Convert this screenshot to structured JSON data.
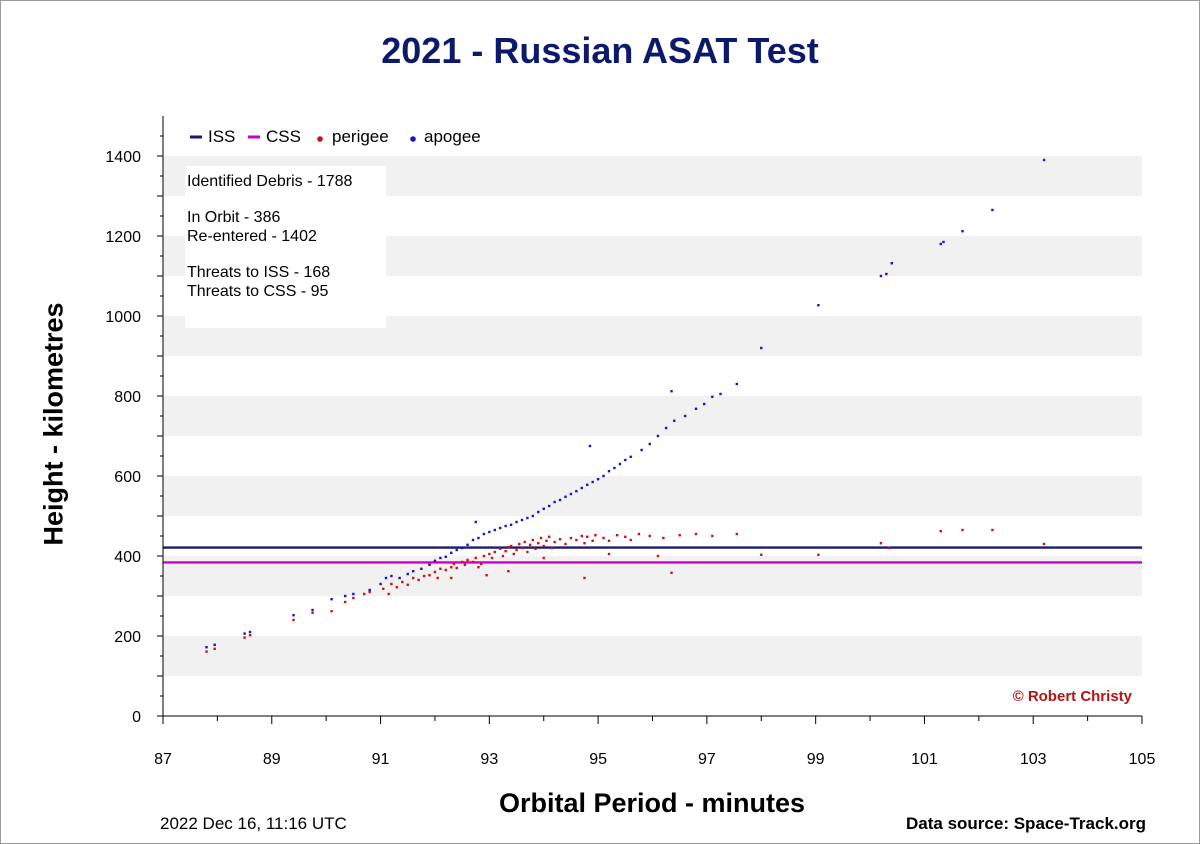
{
  "page": {
    "title": "2021 - Russian ASAT Test",
    "timestamp": "2022 Dec 16, 11:16 UTC",
    "source": "Data source: Space-Track.org"
  },
  "chart_data": {
    "type": "scatter",
    "title": "2021 - Russian ASAT Test",
    "xlabel": "Orbital Period - minutes",
    "ylabel": "Height - kilometres",
    "xlim": [
      87,
      105
    ],
    "ylim": [
      0,
      1500
    ],
    "x_ticks": [
      87,
      89,
      91,
      93,
      95,
      97,
      99,
      101,
      103,
      105
    ],
    "y_ticks": [
      0,
      200,
      400,
      600,
      800,
      1000,
      1200,
      1400
    ],
    "grid": "horizontal alternating bands every 100 km",
    "legend_position": "top-left",
    "legend": [
      "ISS",
      "CSS",
      "perigee",
      "apogee"
    ],
    "reference_lines": [
      {
        "name": "ISS",
        "y": 421,
        "color": "#1a1a6e"
      },
      {
        "name": "CSS",
        "y": 384,
        "color": "#cc00cc"
      }
    ],
    "info_box": [
      "Identified Debris - 1788",
      "In Orbit - 386",
      "Re-entered - 1402",
      "Threats to ISS -  168",
      "Threats to CSS - 95"
    ],
    "copyright": "© Robert Christy",
    "series": [
      {
        "name": "perigee",
        "color": "#d01010",
        "points": [
          [
            87.8,
            161
          ],
          [
            87.95,
            168
          ],
          [
            88.5,
            196
          ],
          [
            88.6,
            202
          ],
          [
            89.4,
            240
          ],
          [
            89.75,
            258
          ],
          [
            90.1,
            262
          ],
          [
            90.35,
            285
          ],
          [
            90.5,
            295
          ],
          [
            90.7,
            305
          ],
          [
            90.8,
            310
          ],
          [
            91.05,
            318
          ],
          [
            91.15,
            305
          ],
          [
            91.2,
            330
          ],
          [
            91.3,
            322
          ],
          [
            91.4,
            335
          ],
          [
            91.5,
            328
          ],
          [
            91.6,
            345
          ],
          [
            91.7,
            340
          ],
          [
            91.8,
            350
          ],
          [
            91.9,
            352
          ],
          [
            92.0,
            360
          ],
          [
            92.05,
            345
          ],
          [
            92.1,
            368
          ],
          [
            92.2,
            365
          ],
          [
            92.3,
            372
          ],
          [
            92.35,
            380
          ],
          [
            92.4,
            370
          ],
          [
            92.5,
            385
          ],
          [
            92.55,
            378
          ],
          [
            92.6,
            390
          ],
          [
            92.7,
            385
          ],
          [
            92.75,
            395
          ],
          [
            92.8,
            372
          ],
          [
            92.85,
            380
          ],
          [
            92.9,
            400
          ],
          [
            93.0,
            405
          ],
          [
            93.05,
            395
          ],
          [
            93.1,
            410
          ],
          [
            93.2,
            418
          ],
          [
            93.25,
            400
          ],
          [
            93.3,
            412
          ],
          [
            93.35,
            422
          ],
          [
            93.4,
            425
          ],
          [
            93.45,
            405
          ],
          [
            93.5,
            415
          ],
          [
            93.55,
            430
          ],
          [
            93.6,
            420
          ],
          [
            93.65,
            435
          ],
          [
            93.7,
            410
          ],
          [
            93.75,
            428
          ],
          [
            93.8,
            440
          ],
          [
            93.85,
            418
          ],
          [
            93.9,
            432
          ],
          [
            93.95,
            445
          ],
          [
            94.0,
            425
          ],
          [
            94.05,
            438
          ],
          [
            94.1,
            448
          ],
          [
            94.15,
            420
          ],
          [
            94.2,
            435
          ],
          [
            94.3,
            442
          ],
          [
            94.4,
            430
          ],
          [
            94.5,
            445
          ],
          [
            94.6,
            440
          ],
          [
            94.7,
            450
          ],
          [
            94.75,
            432
          ],
          [
            94.8,
            448
          ],
          [
            94.9,
            438
          ],
          [
            94.95,
            452
          ],
          [
            95.1,
            445
          ],
          [
            95.2,
            438
          ],
          [
            95.35,
            452
          ],
          [
            95.5,
            448
          ],
          [
            95.6,
            440
          ],
          [
            95.75,
            455
          ],
          [
            95.95,
            450
          ],
          [
            96.2,
            445
          ],
          [
            96.5,
            452
          ],
          [
            96.8,
            455
          ],
          [
            97.1,
            450
          ],
          [
            97.55,
            455
          ],
          [
            93.35,
            362
          ],
          [
            92.95,
            352
          ],
          [
            92.3,
            345
          ],
          [
            94.75,
            345
          ],
          [
            96.35,
            358
          ],
          [
            95.2,
            405
          ],
          [
            96.1,
            400
          ],
          [
            94.0,
            395
          ],
          [
            98.0,
            403
          ],
          [
            99.05,
            403
          ],
          [
            100.2,
            432
          ],
          [
            100.35,
            420
          ],
          [
            101.3,
            462
          ],
          [
            101.7,
            465
          ],
          [
            102.25,
            465
          ],
          [
            103.2,
            430
          ]
        ]
      },
      {
        "name": "apogee",
        "color": "#1414c8",
        "points": [
          [
            87.8,
            172
          ],
          [
            87.95,
            178
          ],
          [
            88.5,
            206
          ],
          [
            88.6,
            210
          ],
          [
            89.4,
            252
          ],
          [
            89.75,
            265
          ],
          [
            90.1,
            292
          ],
          [
            90.35,
            300
          ],
          [
            90.5,
            305
          ],
          [
            90.8,
            315
          ],
          [
            91.0,
            330
          ],
          [
            91.1,
            345
          ],
          [
            91.2,
            350
          ],
          [
            91.35,
            345
          ],
          [
            91.5,
            355
          ],
          [
            91.6,
            362
          ],
          [
            91.75,
            368
          ],
          [
            91.9,
            378
          ],
          [
            92.0,
            388
          ],
          [
            92.1,
            395
          ],
          [
            92.2,
            398
          ],
          [
            92.3,
            408
          ],
          [
            92.4,
            415
          ],
          [
            92.5,
            420
          ],
          [
            92.6,
            428
          ],
          [
            92.7,
            440
          ],
          [
            92.8,
            445
          ],
          [
            92.9,
            455
          ],
          [
            93.0,
            460
          ],
          [
            93.1,
            465
          ],
          [
            93.2,
            470
          ],
          [
            93.3,
            475
          ],
          [
            93.4,
            478
          ],
          [
            93.5,
            485
          ],
          [
            93.6,
            490
          ],
          [
            93.7,
            495
          ],
          [
            93.8,
            500
          ],
          [
            93.9,
            510
          ],
          [
            94.0,
            518
          ],
          [
            94.1,
            525
          ],
          [
            94.2,
            535
          ],
          [
            94.3,
            540
          ],
          [
            94.4,
            548
          ],
          [
            94.5,
            555
          ],
          [
            94.6,
            562
          ],
          [
            94.7,
            570
          ],
          [
            94.8,
            578
          ],
          [
            94.9,
            585
          ],
          [
            95.0,
            592
          ],
          [
            95.1,
            600
          ],
          [
            95.2,
            612
          ],
          [
            95.3,
            620
          ],
          [
            95.4,
            630
          ],
          [
            95.5,
            640
          ],
          [
            95.6,
            648
          ],
          [
            95.8,
            665
          ],
          [
            95.95,
            680
          ],
          [
            96.1,
            700
          ],
          [
            96.25,
            720
          ],
          [
            96.4,
            738
          ],
          [
            96.6,
            750
          ],
          [
            96.8,
            768
          ],
          [
            96.95,
            780
          ],
          [
            97.1,
            798
          ],
          [
            97.25,
            805
          ],
          [
            97.55,
            830
          ],
          [
            96.35,
            812
          ],
          [
            94.85,
            675
          ],
          [
            92.75,
            485
          ],
          [
            98.0,
            920
          ],
          [
            99.05,
            1027
          ],
          [
            100.2,
            1100
          ],
          [
            100.3,
            1105
          ],
          [
            100.4,
            1132
          ],
          [
            101.3,
            1180
          ],
          [
            101.35,
            1185
          ],
          [
            101.7,
            1212
          ],
          [
            102.25,
            1265
          ],
          [
            103.2,
            1390
          ]
        ]
      }
    ]
  }
}
